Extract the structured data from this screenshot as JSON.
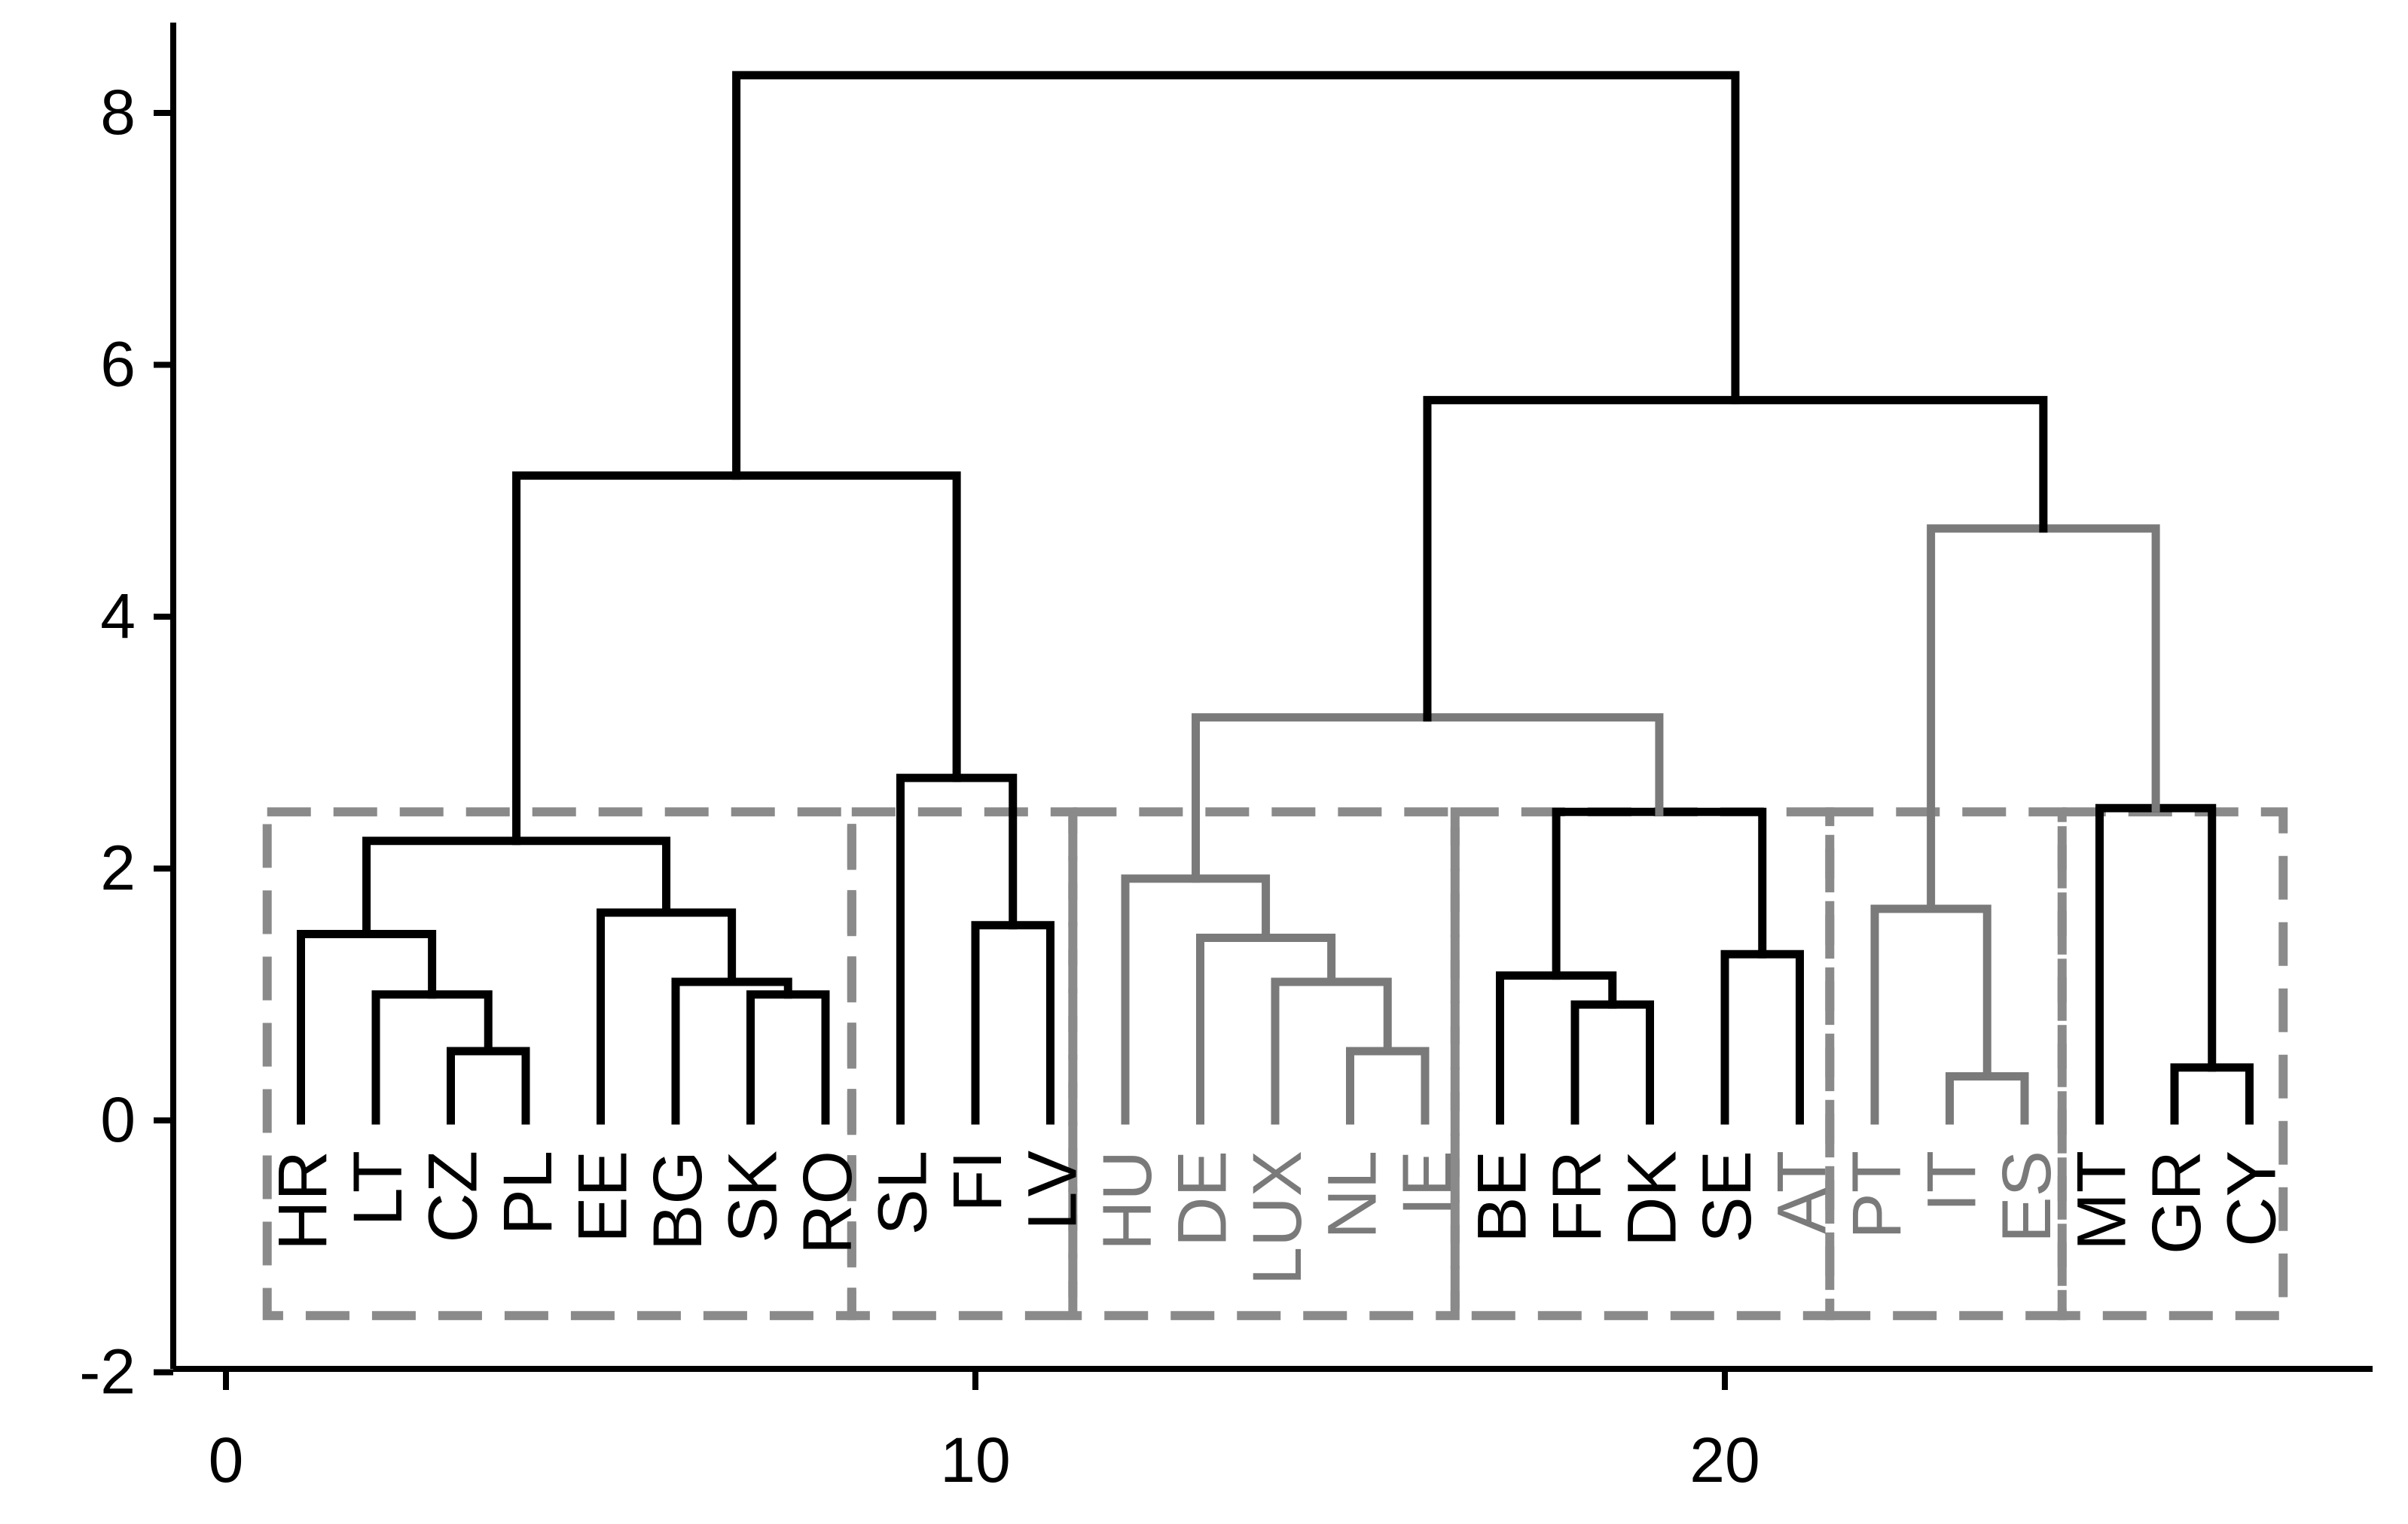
{
  "chart_data": {
    "type": "dendrogram",
    "title": "",
    "xlabel": "",
    "ylabel": "",
    "xlim": [
      0,
      28.5
    ],
    "ylim": [
      -2,
      8.6
    ],
    "x_ticks": [
      0,
      10,
      20
    ],
    "y_ticks": [
      -2,
      0,
      2,
      4,
      6,
      8
    ],
    "x_tick_labels": [
      "0",
      "10",
      "20"
    ],
    "y_tick_labels": [
      "-2",
      "0",
      "2",
      "4",
      "6",
      "8"
    ],
    "grid": false,
    "colors": {
      "black": "#000000",
      "gray": "#7a7a7a",
      "box": "#8a8a8a"
    },
    "leaves": [
      {
        "label": "HR",
        "x": 1,
        "group": "black"
      },
      {
        "label": "LT",
        "x": 2,
        "group": "black"
      },
      {
        "label": "CZ",
        "x": 3,
        "group": "black"
      },
      {
        "label": "PL",
        "x": 4,
        "group": "black"
      },
      {
        "label": "EE",
        "x": 5,
        "group": "black"
      },
      {
        "label": "BG",
        "x": 6,
        "group": "black"
      },
      {
        "label": "SK",
        "x": 7,
        "group": "black"
      },
      {
        "label": "RO",
        "x": 8,
        "group": "black"
      },
      {
        "label": "SL",
        "x": 9,
        "group": "black"
      },
      {
        "label": "FI",
        "x": 10,
        "group": "black"
      },
      {
        "label": "LV",
        "x": 11,
        "group": "black"
      },
      {
        "label": "HU",
        "x": 12,
        "group": "gray"
      },
      {
        "label": "DE",
        "x": 13,
        "group": "gray"
      },
      {
        "label": "LUX",
        "x": 14,
        "group": "gray"
      },
      {
        "label": "NL",
        "x": 15,
        "group": "gray"
      },
      {
        "label": "IE",
        "x": 16,
        "group": "gray"
      },
      {
        "label": "BE",
        "x": 17,
        "group": "black"
      },
      {
        "label": "FR",
        "x": 18,
        "group": "black"
      },
      {
        "label": "DK",
        "x": 19,
        "group": "black"
      },
      {
        "label": "SE",
        "x": 20,
        "group": "black"
      },
      {
        "label": "AT",
        "x": 21,
        "group": "gray"
      },
      {
        "label": "PT",
        "x": 22,
        "group": "gray"
      },
      {
        "label": "IT",
        "x": 23,
        "group": "gray"
      },
      {
        "label": "ES",
        "x": 24,
        "group": "gray"
      },
      {
        "label": "MT",
        "x": 25,
        "group": "black"
      },
      {
        "label": "GR",
        "x": 26,
        "group": "black"
      },
      {
        "label": "CY",
        "x": 27,
        "group": "black"
      }
    ],
    "links": [
      {
        "x1": 3,
        "y1": 0,
        "x2": 4,
        "y2": 0,
        "h": 0.55,
        "color": "black"
      },
      {
        "x1": 2,
        "y1": 0,
        "x2": 3.5,
        "y2": 0.55,
        "h": 1.0,
        "color": "black"
      },
      {
        "x1": 1,
        "y1": 0,
        "x2": 2.75,
        "y2": 1.0,
        "h": 1.48,
        "color": "black"
      },
      {
        "x1": 7,
        "y1": 0,
        "x2": 8,
        "y2": 0,
        "h": 1.0,
        "color": "black"
      },
      {
        "x1": 6,
        "y1": 0,
        "x2": 7.5,
        "y2": 1.0,
        "h": 1.1,
        "color": "black"
      },
      {
        "x1": 5,
        "y1": 0,
        "x2": 6.75,
        "y2": 1.1,
        "h": 1.65,
        "color": "black"
      },
      {
        "x1": 1.875,
        "y1": 1.48,
        "x2": 5.875,
        "y2": 1.65,
        "h": 2.22,
        "color": "black"
      },
      {
        "x1": 10,
        "y1": 0,
        "x2": 11,
        "y2": 0,
        "h": 1.55,
        "color": "black"
      },
      {
        "x1": 9,
        "y1": 0,
        "x2": 10.5,
        "y2": 1.55,
        "h": 2.72,
        "color": "black"
      },
      {
        "x1": 3.875,
        "y1": 2.22,
        "x2": 9.75,
        "y2": 2.72,
        "h": 5.12,
        "color": "black"
      },
      {
        "x1": 15,
        "y1": 0,
        "x2": 16,
        "y2": 0,
        "h": 0.55,
        "color": "gray"
      },
      {
        "x1": 14,
        "y1": 0,
        "x2": 15.5,
        "y2": 0.55,
        "h": 1.1,
        "color": "gray"
      },
      {
        "x1": 13,
        "y1": 0,
        "x2": 14.75,
        "y2": 1.1,
        "h": 1.45,
        "color": "gray"
      },
      {
        "x1": 12,
        "y1": 0,
        "x2": 13.875,
        "y2": 1.45,
        "h": 1.92,
        "color": "gray"
      },
      {
        "x1": 18,
        "y1": 0,
        "x2": 19,
        "y2": 0,
        "h": 0.92,
        "color": "black"
      },
      {
        "x1": 17,
        "y1": 0,
        "x2": 18.5,
        "y2": 0.92,
        "h": 1.15,
        "color": "black"
      },
      {
        "x1": 20,
        "y1": 0,
        "x2": 21,
        "y2": 0,
        "h": 1.32,
        "color": "black"
      },
      {
        "x1": 17.75,
        "y1": 1.15,
        "x2": 20.5,
        "y2": 1.32,
        "h": 2.45,
        "color": "black"
      },
      {
        "x1": 12.94,
        "y1": 1.92,
        "x2": 19.125,
        "y2": 2.45,
        "h": 3.2,
        "color": "gray"
      },
      {
        "x1": 23,
        "y1": 0,
        "x2": 24,
        "y2": 0,
        "h": 0.35,
        "color": "gray"
      },
      {
        "x1": 22,
        "y1": 0,
        "x2": 23.5,
        "y2": 0.35,
        "h": 1.68,
        "color": "gray"
      },
      {
        "x1": 26,
        "y1": 0,
        "x2": 27,
        "y2": 0,
        "h": 0.42,
        "color": "black"
      },
      {
        "x1": 25,
        "y1": 0,
        "x2": 26.5,
        "y2": 0.42,
        "h": 2.48,
        "color": "black"
      },
      {
        "x1": 22.75,
        "y1": 1.68,
        "x2": 25.75,
        "y2": 2.48,
        "h": 4.7,
        "color": "gray"
      },
      {
        "x1": 16.03,
        "y1": 3.2,
        "x2": 24.25,
        "y2": 4.7,
        "h": 5.72,
        "color": "black"
      },
      {
        "x1": 6.81,
        "y1": 5.12,
        "x2": 20.14,
        "y2": 5.72,
        "h": 8.3,
        "color": "black"
      }
    ],
    "cluster_boxes": [
      {
        "x_from": 0.55,
        "x_to": 8.35,
        "y_from": -1.55,
        "y_to": 2.45
      },
      {
        "x_from": 8.35,
        "x_to": 11.3,
        "y_from": -1.55,
        "y_to": 2.45
      },
      {
        "x_from": 11.3,
        "x_to": 16.4,
        "y_from": -1.55,
        "y_to": 2.45
      },
      {
        "x_from": 16.4,
        "x_to": 21.4,
        "y_from": -1.55,
        "y_to": 2.45
      },
      {
        "x_from": 21.4,
        "x_to": 24.5,
        "y_from": -1.55,
        "y_to": 2.45
      },
      {
        "x_from": 24.5,
        "x_to": 27.45,
        "y_from": -1.55,
        "y_to": 2.45
      }
    ]
  }
}
